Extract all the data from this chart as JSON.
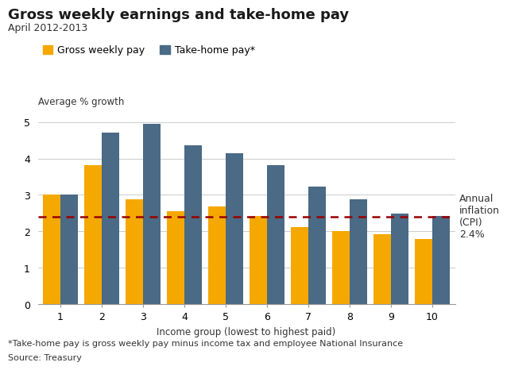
{
  "title": "Gross weekly earnings and take-home pay",
  "subtitle": "April 2012-2013",
  "avg_label": "Average % growth",
  "xlabel": "Income group (lowest to highest paid)",
  "categories": [
    "1",
    "2",
    "3",
    "4",
    "5",
    "6",
    "7",
    "8",
    "9",
    "10"
  ],
  "gross_weekly_pay": [
    3.0,
    3.82,
    2.88,
    2.55,
    2.68,
    2.42,
    2.12,
    2.02,
    1.92,
    1.8
  ],
  "take_home_pay": [
    3.02,
    4.7,
    4.95,
    4.35,
    4.15,
    3.82,
    3.22,
    2.88,
    2.48,
    2.42
  ],
  "gross_color": "#F5A800",
  "takehome_color": "#4A6A85",
  "inflation_value": 2.4,
  "inflation_color": "#990000",
  "ylim": [
    0,
    5.25
  ],
  "yticks": [
    0,
    1,
    2,
    3,
    4,
    5
  ],
  "legend_labels": [
    "Gross weekly pay",
    "Take-home pay*"
  ],
  "annotation_text": "Annual\ninflation\n(CPI)\n2.4%",
  "footnote1": "*Take-home pay is gross weekly pay minus income tax and employee National Insurance",
  "footnote2": "Source: Treasury",
  "bar_width": 0.42,
  "title_fontsize": 13,
  "subtitle_fontsize": 9,
  "axis_label_fontsize": 8.5,
  "tick_fontsize": 9,
  "legend_fontsize": 9,
  "annotation_fontsize": 9,
  "footnote_fontsize": 8
}
